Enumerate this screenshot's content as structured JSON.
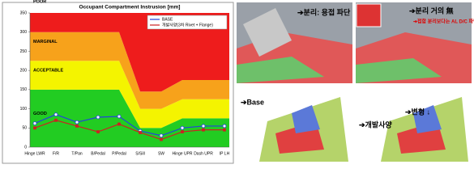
{
  "chart_data": {
    "type": "line",
    "title": "Occupant Compartment Instrusion [mm]",
    "categories": [
      "Hinge LWR",
      "F/R",
      "T/Pan",
      "B/Pedal",
      "P/Pedal",
      "S/Sill",
      "SW",
      "Hinge UPR",
      "Dash UPR",
      "IP LH"
    ],
    "ylim": [
      0,
      350
    ],
    "yticks": [
      0,
      50,
      100,
      150,
      200,
      250,
      300,
      350
    ],
    "rating_bands": [
      {
        "name": "GOOD",
        "color": "#22cc22",
        "upper": [
          150,
          150,
          150,
          150,
          150,
          50,
          50,
          75,
          75,
          75
        ]
      },
      {
        "name": "ACCEPTABLE",
        "color": "#f4f400",
        "upper": [
          225,
          225,
          225,
          225,
          225,
          100,
          100,
          125,
          125,
          125
        ]
      },
      {
        "name": "MARGINAL",
        "color": "#f7a21b",
        "upper": [
          300,
          300,
          300,
          300,
          300,
          145,
          145,
          175,
          175,
          175
        ]
      },
      {
        "name": "POOR",
        "color": "#ee1c1c"
      }
    ],
    "series": [
      {
        "name": "BASE",
        "color": "#2244dd",
        "values": [
          62,
          85,
          65,
          78,
          80,
          42,
          30,
          50,
          55,
          55
        ]
      },
      {
        "name": "개발사양(3차 Rivet + Flange)",
        "color": "#cc2222",
        "values": [
          50,
          70,
          55,
          40,
          60,
          38,
          20,
          40,
          45,
          45
        ]
      }
    ]
  },
  "panels": [
    {
      "top_label": "➔분리: 용접 파단",
      "bottom_label": "➔Base"
    },
    {
      "top_label": "➔분리 거의 無",
      "top_note": "➔접합 분리보다는 AL D/C 파단 선행",
      "bottom_label": "➔개발사양",
      "bottom_note": "➔변형 ↓"
    }
  ]
}
